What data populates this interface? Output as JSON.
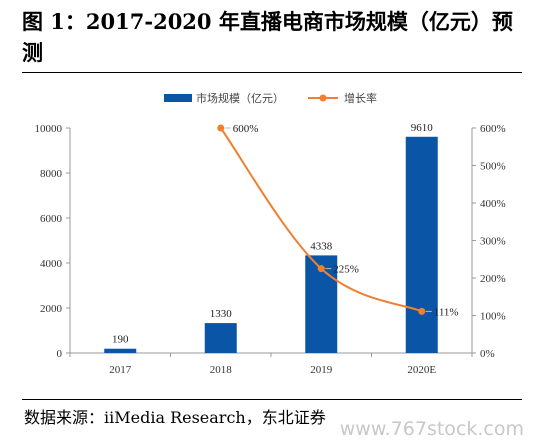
{
  "figure": {
    "title": "图 1：2017-2020 年直播电商市场规模（亿元）预测",
    "source": "数据来源：iiMedia Research，东北证券",
    "watermark": "www.767stock.com"
  },
  "chart_data": {
    "type": "bar",
    "title": "",
    "xlabel": "",
    "ylabel": "",
    "categories": [
      "2017",
      "2018",
      "2019",
      "2020E"
    ],
    "series": [
      {
        "name": "市场规模（亿元）",
        "type": "bar",
        "axis": "left",
        "values": [
          190,
          1330,
          4338,
          9610
        ],
        "data_labels": [
          "190",
          "1330",
          "4338",
          "9610"
        ],
        "color": "#0a55a5"
      },
      {
        "name": "增长率",
        "type": "line",
        "axis": "right",
        "values": [
          null,
          600,
          225,
          111
        ],
        "data_labels": [
          "",
          "600%",
          "225%",
          "111%"
        ],
        "color": "#f08030"
      }
    ],
    "ylim_left": [
      0,
      10000
    ],
    "yticks_left": [
      "0",
      "2000",
      "4000",
      "6000",
      "8000",
      "10000"
    ],
    "ylim_right": [
      0,
      600
    ],
    "yticks_right": [
      "0%",
      "100%",
      "200%",
      "300%",
      "400%",
      "500%",
      "600%"
    ],
    "grid": false,
    "legend": "top-center"
  }
}
